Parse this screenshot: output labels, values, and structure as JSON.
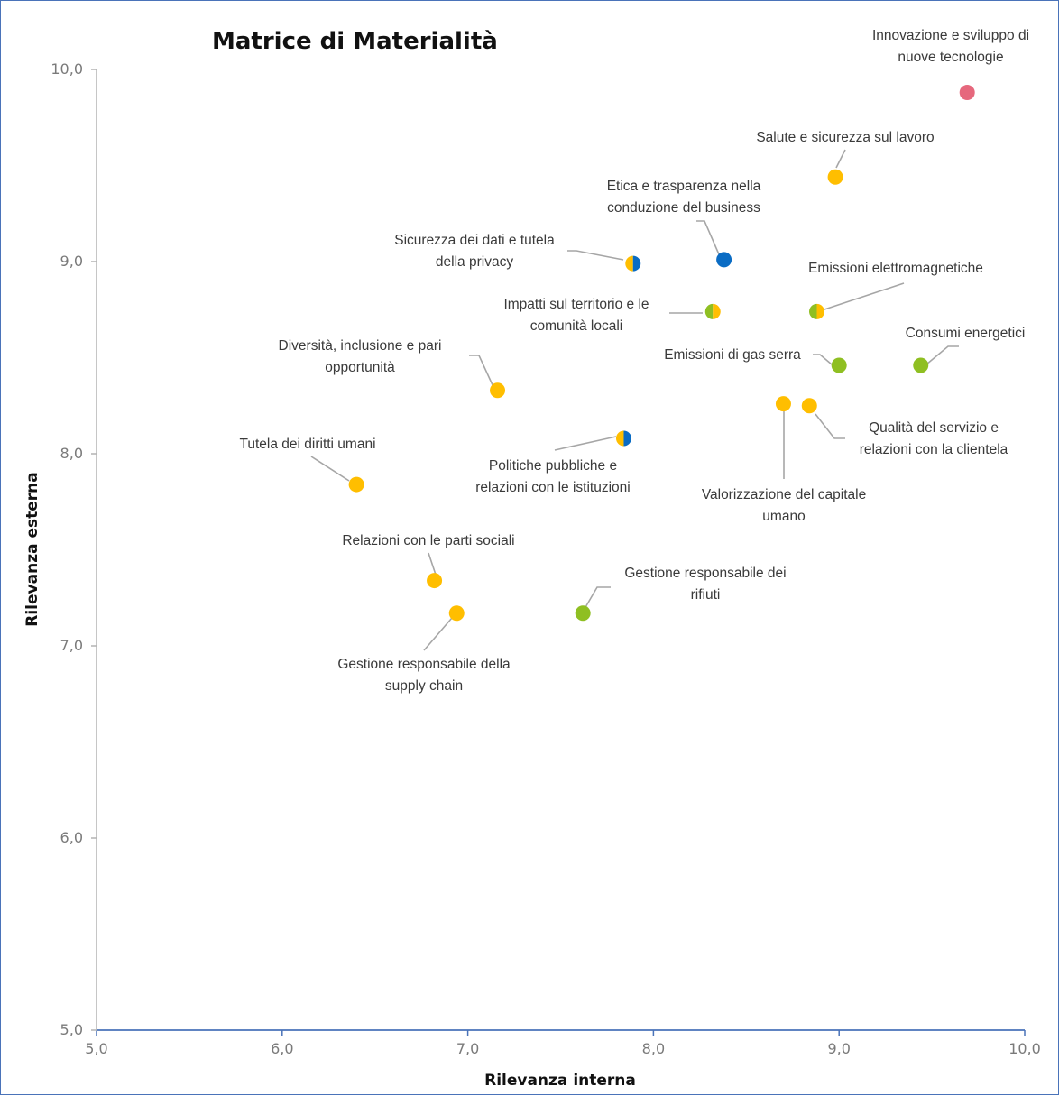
{
  "colors": {
    "orange": "#ffbe00",
    "green": "#8fbf22",
    "blue": "#0a6cc4",
    "pink": "#e6687d",
    "x_axis": "#4a73b9",
    "y_axis": "#b3b3b3"
  },
  "chart_data": {
    "type": "scatter",
    "title": "Matrice di Materialità",
    "xlabel": "Rilevanza interna",
    "ylabel": "Rilevanza esterna",
    "xlim": [
      5.0,
      10.0
    ],
    "ylim": [
      5.0,
      10.0
    ],
    "x_ticks": [
      "5,0",
      "6,0",
      "7,0",
      "8,0",
      "9,0",
      "10,0"
    ],
    "y_ticks": [
      "5,0",
      "6,0",
      "7,0",
      "8,0",
      "9,0",
      "10,0"
    ],
    "grid": false,
    "points": [
      {
        "id": "innovazione",
        "label": [
          "Innovazione e sviluppo di",
          "nuove tecnologie"
        ],
        "x": 9.69,
        "y": 9.88,
        "colors": [
          "pink"
        ]
      },
      {
        "id": "salute",
        "label": [
          "Salute e sicurezza sul lavoro"
        ],
        "x": 8.98,
        "y": 9.44,
        "colors": [
          "orange"
        ]
      },
      {
        "id": "etica",
        "label": [
          "Etica e trasparenza nella",
          "conduzione del business"
        ],
        "x": 8.38,
        "y": 9.01,
        "colors": [
          "blue"
        ]
      },
      {
        "id": "sicurezza-dati",
        "label": [
          "Sicurezza dei dati e tutela",
          "della privacy"
        ],
        "x": 7.89,
        "y": 8.99,
        "colors": [
          "orange",
          "blue"
        ]
      },
      {
        "id": "emissioni-elettro",
        "label": [
          "Emissioni elettromagnetiche"
        ],
        "x": 8.88,
        "y": 8.74,
        "colors": [
          "green",
          "orange"
        ]
      },
      {
        "id": "impatti",
        "label": [
          "Impatti sul territorio e le",
          "comunità locali"
        ],
        "x": 8.32,
        "y": 8.74,
        "colors": [
          "green",
          "orange"
        ]
      },
      {
        "id": "consumi",
        "label": [
          "Consumi energetici"
        ],
        "x": 9.44,
        "y": 8.46,
        "colors": [
          "green"
        ]
      },
      {
        "id": "gas-serra",
        "label": [
          "Emissioni di gas serra"
        ],
        "x": 9.0,
        "y": 8.46,
        "colors": [
          "green"
        ]
      },
      {
        "id": "diversita",
        "label": [
          "Diversità, inclusione e pari",
          "opportunità"
        ],
        "x": 7.16,
        "y": 8.33,
        "colors": [
          "orange"
        ]
      },
      {
        "id": "valorizzazione",
        "label": [
          "Valorizzazione del capitale",
          "umano"
        ],
        "x": 8.7,
        "y": 8.26,
        "colors": [
          "orange"
        ]
      },
      {
        "id": "qualita",
        "label": [
          "Qualità del servizio e",
          "relazioni con la clientela"
        ],
        "x": 8.84,
        "y": 8.25,
        "colors": [
          "orange"
        ]
      },
      {
        "id": "politiche",
        "label": [
          "Politiche pubbliche e",
          "relazioni con le istituzioni"
        ],
        "x": 7.84,
        "y": 8.08,
        "colors": [
          "orange",
          "blue"
        ]
      },
      {
        "id": "diritti-umani",
        "label": [
          "Tutela dei diritti umani"
        ],
        "x": 6.4,
        "y": 7.84,
        "colors": [
          "orange"
        ]
      },
      {
        "id": "parti-sociali",
        "label": [
          "Relazioni con le parti sociali"
        ],
        "x": 6.82,
        "y": 7.34,
        "colors": [
          "orange"
        ]
      },
      {
        "id": "rifiuti",
        "label": [
          "Gestione responsabile dei",
          "rifiuti"
        ],
        "x": 7.62,
        "y": 7.17,
        "colors": [
          "green"
        ]
      },
      {
        "id": "supply-chain",
        "label": [
          "Gestione responsabile della",
          "supply chain"
        ],
        "x": 6.94,
        "y": 7.17,
        "colors": [
          "orange"
        ]
      }
    ]
  }
}
